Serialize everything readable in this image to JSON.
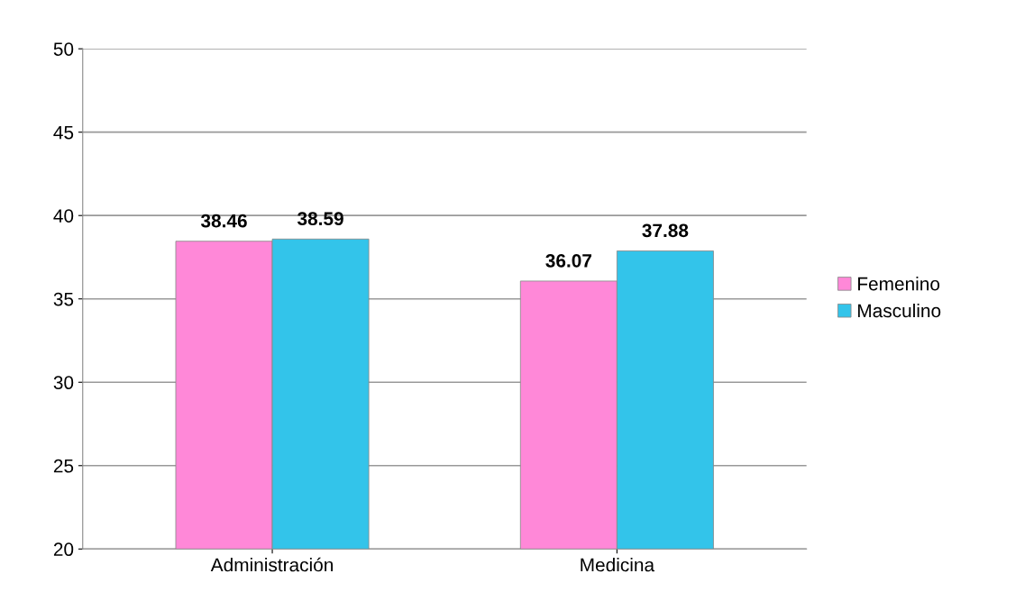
{
  "chart_data": {
    "type": "bar",
    "categories": [
      "Administración",
      "Medicina"
    ],
    "series": [
      {
        "name": "Femenino",
        "color": "#ff88d8",
        "values": [
          38.46,
          36.07
        ]
      },
      {
        "name": "Masculino",
        "color": "#33c4ea",
        "values": [
          38.59,
          37.88
        ]
      }
    ],
    "ylim": [
      20,
      50
    ],
    "yticks": [
      20,
      25,
      30,
      35,
      40,
      45,
      50
    ],
    "grid": "y",
    "legend": "right",
    "data_labels": true
  }
}
